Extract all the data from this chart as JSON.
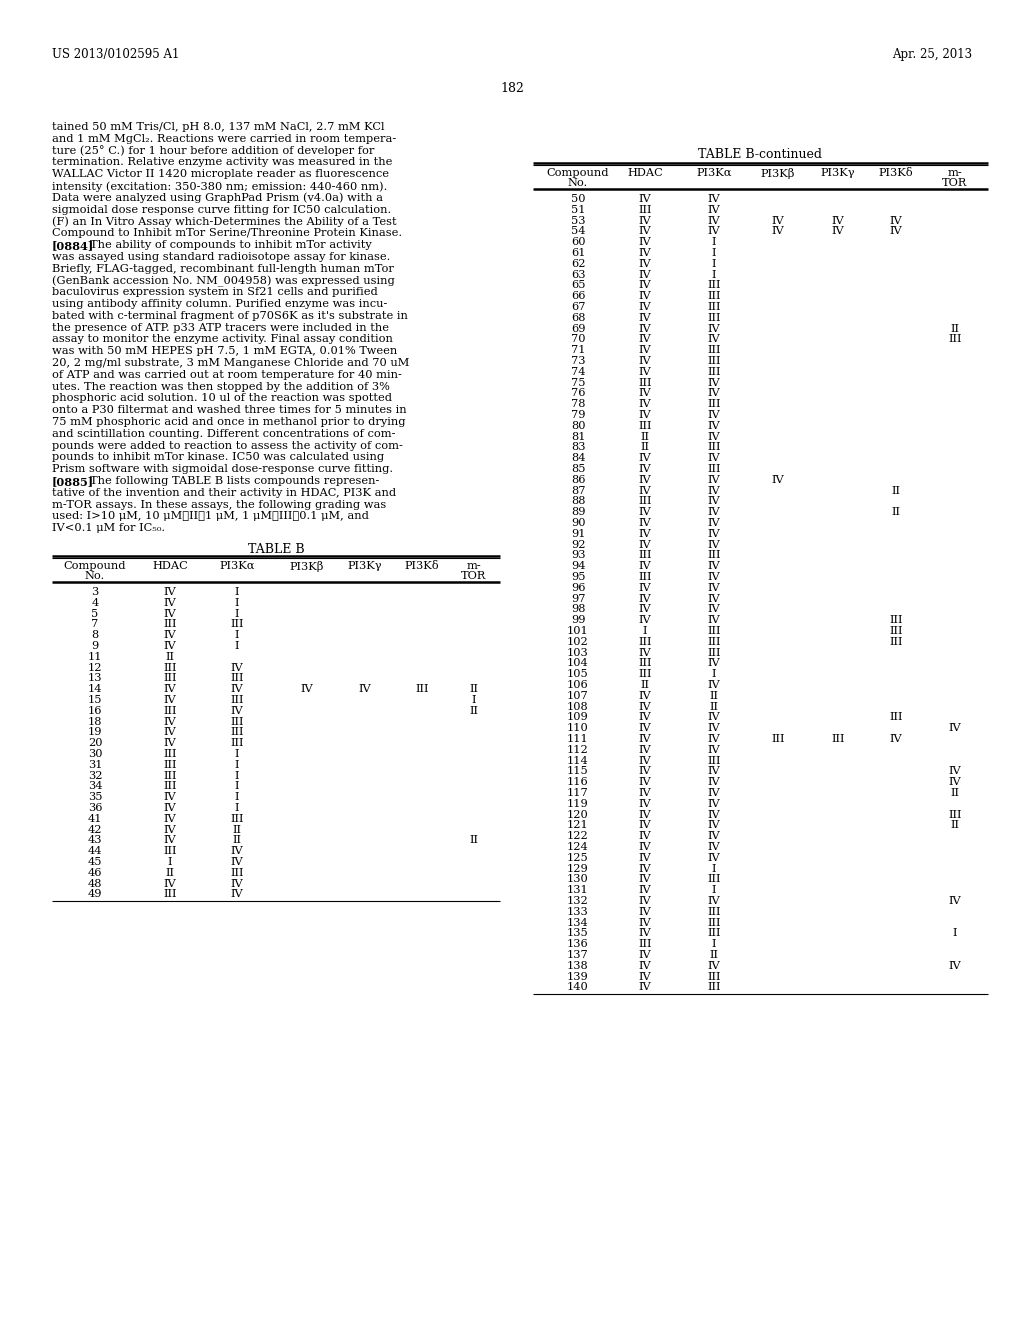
{
  "header_left": "US 2013/0102595 A1",
  "header_right": "Apr. 25, 2013",
  "page_number": "182",
  "para1_lines": [
    "tained 50 mM Tris/Cl, pH 8.0, 137 mM NaCl, 2.7 mM KCl",
    "and 1 mM MgCl₂. Reactions were carried in room tempera-",
    "ture (25° C.) for 1 hour before addition of developer for",
    "termination. Relative enzyme activity was measured in the",
    "WALLAC Victor II 1420 microplate reader as fluorescence",
    "intensity (excitation: 350-380 nm; emission: 440-460 nm).",
    "Data were analyzed using GraphPad Prism (v4.0a) with a",
    "sigmoidal dose response curve fitting for IC50 calculation."
  ],
  "para_f_lines": [
    "(F) an In Vitro Assay which-Determines the Ability of a Test",
    "Compound to Inhibit mTor Serine/Threonine Protein Kinase."
  ],
  "para_0884_tag": "[0884]",
  "para_0884_lines": [
    "   The ability of compounds to inhibit mTor activity",
    "was assayed using standard radioisotope assay for kinase.",
    "Briefly, FLAG-tagged, recombinant full-length human mTor",
    "(GenBank accession No. NM_004958) was expressed using",
    "baculovirus expression system in Sf21 cells and purified",
    "using antibody affinity column. Purified enzyme was incu-",
    "bated with c-terminal fragment of p70S6K as it's substrate in",
    "the presence of ATP. p33 ATP tracers were included in the",
    "assay to monitor the enzyme activity. Final assay condition",
    "was with 50 mM HEPES pH 7.5, 1 mM EGTA, 0.01% Tween",
    "20, 2 mg/ml substrate, 3 mM Manganese Chloride and 70 uM",
    "of ATP and was carried out at room temperature for 40 min-",
    "utes. The reaction was then stopped by the addition of 3%",
    "phosphoric acid solution. 10 ul of the reaction was spotted",
    "onto a P30 filtermat and washed three times for 5 minutes in",
    "75 mM phosphoric acid and once in methanol prior to drying",
    "and scintillation counting. Different concentrations of com-",
    "pounds were added to reaction to assess the activity of com-",
    "pounds to inhibit mTor kinase. IC50 was calculated using",
    "Prism software with sigmoidal dose-response curve fitting."
  ],
  "para_0885_tag": "[0885]",
  "para_0885_lines": [
    "   The following TABLE B lists compounds represen-",
    "tative of the invention and their activity in HDAC, PI3K and",
    "m-TOR assays. In these assays, the following grading was",
    "used: I>10 μM, 10 μM≧II≧1 μM, 1 μM≧III≧0.1 μM, and",
    "IV<0.1 μM for IC₅₀."
  ],
  "table_b_rows": [
    [
      "3",
      "IV",
      "I",
      "",
      "",
      "",
      ""
    ],
    [
      "4",
      "IV",
      "I",
      "",
      "",
      "",
      ""
    ],
    [
      "5",
      "IV",
      "I",
      "",
      "",
      "",
      ""
    ],
    [
      "7",
      "III",
      "III",
      "",
      "",
      "",
      ""
    ],
    [
      "8",
      "IV",
      "I",
      "",
      "",
      "",
      ""
    ],
    [
      "9",
      "IV",
      "I",
      "",
      "",
      "",
      ""
    ],
    [
      "11",
      "II",
      "",
      "",
      "",
      "",
      ""
    ],
    [
      "12",
      "III",
      "IV",
      "",
      "",
      "",
      ""
    ],
    [
      "13",
      "III",
      "III",
      "",
      "",
      "",
      ""
    ],
    [
      "14",
      "IV",
      "IV",
      "IV",
      "IV",
      "III",
      "II"
    ],
    [
      "15",
      "IV",
      "III",
      "",
      "",
      "",
      "I"
    ],
    [
      "16",
      "III",
      "IV",
      "",
      "",
      "",
      "II"
    ],
    [
      "18",
      "IV",
      "III",
      "",
      "",
      "",
      ""
    ],
    [
      "19",
      "IV",
      "III",
      "",
      "",
      "",
      ""
    ],
    [
      "20",
      "IV",
      "III",
      "",
      "",
      "",
      ""
    ],
    [
      "30",
      "III",
      "I",
      "",
      "",
      "",
      ""
    ],
    [
      "31",
      "III",
      "I",
      "",
      "",
      "",
      ""
    ],
    [
      "32",
      "III",
      "I",
      "",
      "",
      "",
      ""
    ],
    [
      "34",
      "III",
      "I",
      "",
      "",
      "",
      ""
    ],
    [
      "35",
      "IV",
      "I",
      "",
      "",
      "",
      ""
    ],
    [
      "36",
      "IV",
      "I",
      "",
      "",
      "",
      ""
    ],
    [
      "41",
      "IV",
      "III",
      "",
      "",
      "",
      ""
    ],
    [
      "42",
      "IV",
      "II",
      "",
      "",
      "",
      ""
    ],
    [
      "43",
      "IV",
      "II",
      "",
      "",
      "",
      "II"
    ],
    [
      "44",
      "III",
      "IV",
      "",
      "",
      "",
      ""
    ],
    [
      "45",
      "I",
      "IV",
      "",
      "",
      "",
      ""
    ],
    [
      "46",
      "II",
      "III",
      "",
      "",
      "",
      ""
    ],
    [
      "48",
      "IV",
      "IV",
      "",
      "",
      "",
      ""
    ],
    [
      "49",
      "III",
      "IV",
      "",
      "",
      "",
      ""
    ]
  ],
  "table_bc_rows": [
    [
      "50",
      "IV",
      "IV",
      "",
      "",
      "",
      ""
    ],
    [
      "51",
      "III",
      "IV",
      "",
      "",
      "",
      ""
    ],
    [
      "53",
      "IV",
      "IV",
      "IV",
      "IV",
      "IV",
      ""
    ],
    [
      "54",
      "IV",
      "IV",
      "IV",
      "IV",
      "IV",
      ""
    ],
    [
      "60",
      "IV",
      "I",
      "",
      "",
      "",
      ""
    ],
    [
      "61",
      "IV",
      "I",
      "",
      "",
      "",
      ""
    ],
    [
      "62",
      "IV",
      "I",
      "",
      "",
      "",
      ""
    ],
    [
      "63",
      "IV",
      "I",
      "",
      "",
      "",
      ""
    ],
    [
      "65",
      "IV",
      "III",
      "",
      "",
      "",
      ""
    ],
    [
      "66",
      "IV",
      "III",
      "",
      "",
      "",
      ""
    ],
    [
      "67",
      "IV",
      "III",
      "",
      "",
      "",
      ""
    ],
    [
      "68",
      "IV",
      "III",
      "",
      "",
      "",
      ""
    ],
    [
      "69",
      "IV",
      "IV",
      "",
      "",
      "",
      "II"
    ],
    [
      "70",
      "IV",
      "IV",
      "",
      "",
      "",
      "III"
    ],
    [
      "71",
      "IV",
      "III",
      "",
      "",
      "",
      ""
    ],
    [
      "73",
      "IV",
      "III",
      "",
      "",
      "",
      ""
    ],
    [
      "74",
      "IV",
      "III",
      "",
      "",
      "",
      ""
    ],
    [
      "75",
      "III",
      "IV",
      "",
      "",
      "",
      ""
    ],
    [
      "76",
      "IV",
      "IV",
      "",
      "",
      "",
      ""
    ],
    [
      "78",
      "IV",
      "III",
      "",
      "",
      "",
      ""
    ],
    [
      "79",
      "IV",
      "IV",
      "",
      "",
      "",
      ""
    ],
    [
      "80",
      "III",
      "IV",
      "",
      "",
      "",
      ""
    ],
    [
      "81",
      "II",
      "IV",
      "",
      "",
      "",
      ""
    ],
    [
      "83",
      "II",
      "III",
      "",
      "",
      "",
      ""
    ],
    [
      "84",
      "IV",
      "IV",
      "",
      "",
      "",
      ""
    ],
    [
      "85",
      "IV",
      "III",
      "",
      "",
      "",
      ""
    ],
    [
      "86",
      "IV",
      "IV",
      "IV",
      "",
      "",
      ""
    ],
    [
      "87",
      "IV",
      "IV",
      "",
      "",
      "II",
      ""
    ],
    [
      "88",
      "III",
      "IV",
      "",
      "",
      "",
      ""
    ],
    [
      "89",
      "IV",
      "IV",
      "",
      "",
      "II",
      ""
    ],
    [
      "90",
      "IV",
      "IV",
      "",
      "",
      "",
      ""
    ],
    [
      "91",
      "IV",
      "IV",
      "",
      "",
      "",
      ""
    ],
    [
      "92",
      "IV",
      "IV",
      "",
      "",
      "",
      ""
    ],
    [
      "93",
      "III",
      "III",
      "",
      "",
      "",
      ""
    ],
    [
      "94",
      "IV",
      "IV",
      "",
      "",
      "",
      ""
    ],
    [
      "95",
      "III",
      "IV",
      "",
      "",
      "",
      ""
    ],
    [
      "96",
      "IV",
      "IV",
      "",
      "",
      "",
      ""
    ],
    [
      "97",
      "IV",
      "IV",
      "",
      "",
      "",
      ""
    ],
    [
      "98",
      "IV",
      "IV",
      "",
      "",
      "",
      ""
    ],
    [
      "99",
      "IV",
      "IV",
      "",
      "",
      "III",
      ""
    ],
    [
      "101",
      "I",
      "III",
      "",
      "",
      "III",
      ""
    ],
    [
      "102",
      "III",
      "III",
      "",
      "",
      "III",
      ""
    ],
    [
      "103",
      "IV",
      "III",
      "",
      "",
      "",
      ""
    ],
    [
      "104",
      "III",
      "IV",
      "",
      "",
      "",
      ""
    ],
    [
      "105",
      "III",
      "I",
      "",
      "",
      "",
      ""
    ],
    [
      "106",
      "II",
      "IV",
      "",
      "",
      "",
      ""
    ],
    [
      "107",
      "IV",
      "II",
      "",
      "",
      "",
      ""
    ],
    [
      "108",
      "IV",
      "II",
      "",
      "",
      "",
      ""
    ],
    [
      "109",
      "IV",
      "IV",
      "",
      "",
      "III",
      ""
    ],
    [
      "110",
      "IV",
      "IV",
      "",
      "",
      "",
      "IV"
    ],
    [
      "111",
      "IV",
      "IV",
      "III",
      "III",
      "IV",
      ""
    ],
    [
      "112",
      "IV",
      "IV",
      "",
      "",
      "",
      ""
    ],
    [
      "114",
      "IV",
      "III",
      "",
      "",
      "",
      ""
    ],
    [
      "115",
      "IV",
      "IV",
      "",
      "",
      "",
      "IV"
    ],
    [
      "116",
      "IV",
      "IV",
      "",
      "",
      "",
      "IV"
    ],
    [
      "117",
      "IV",
      "IV",
      "",
      "",
      "",
      "II"
    ],
    [
      "119",
      "IV",
      "IV",
      "",
      "",
      "",
      ""
    ],
    [
      "120",
      "IV",
      "IV",
      "",
      "",
      "",
      "III"
    ],
    [
      "121",
      "IV",
      "IV",
      "",
      "",
      "",
      "II"
    ],
    [
      "122",
      "IV",
      "IV",
      "",
      "",
      "",
      ""
    ],
    [
      "124",
      "IV",
      "IV",
      "",
      "",
      "",
      ""
    ],
    [
      "125",
      "IV",
      "IV",
      "",
      "",
      "",
      ""
    ],
    [
      "129",
      "IV",
      "I",
      "",
      "",
      "",
      ""
    ],
    [
      "130",
      "IV",
      "III",
      "",
      "",
      "",
      ""
    ],
    [
      "131",
      "IV",
      "I",
      "",
      "",
      "",
      ""
    ],
    [
      "132",
      "IV",
      "IV",
      "",
      "",
      "",
      "IV"
    ],
    [
      "133",
      "IV",
      "III",
      "",
      "",
      "",
      ""
    ],
    [
      "134",
      "IV",
      "III",
      "",
      "",
      "",
      ""
    ],
    [
      "135",
      "IV",
      "III",
      "",
      "",
      "",
      "I"
    ],
    [
      "136",
      "III",
      "I",
      "",
      "",
      "",
      ""
    ],
    [
      "137",
      "IV",
      "II",
      "",
      "",
      "",
      ""
    ],
    [
      "138",
      "IV",
      "IV",
      "",
      "",
      "",
      "IV"
    ],
    [
      "139",
      "IV",
      "III",
      "",
      "",
      "",
      ""
    ],
    [
      "140",
      "IV",
      "III",
      "",
      "",
      "",
      ""
    ]
  ]
}
